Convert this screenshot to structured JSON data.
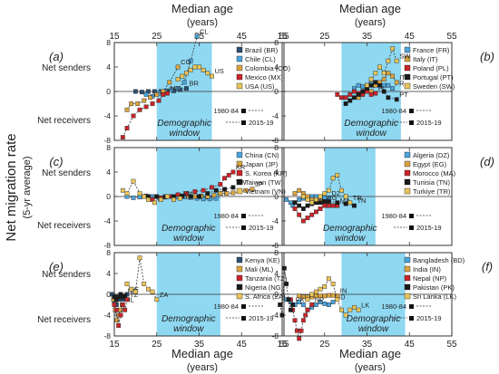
{
  "figure": {
    "ylabel_main": "Net migration rate",
    "ylabel_sub": "(5-yr average)",
    "top_xlabel": "Median age",
    "top_xlabel_sub": "(years)",
    "bottom_xlabel": "Median age",
    "bottom_xlabel_sub": "(years)",
    "net_senders": "Net senders",
    "net_receivers": "Net receivers",
    "window_label_1": "Demographic",
    "window_label_2": "window",
    "period_1": "1980-84",
    "period_2": "2015-19"
  },
  "chart_data": [
    {
      "type": "scatter",
      "panel": "(a)",
      "xlim": [
        15,
        55
      ],
      "ylim": [
        -8,
        8
      ],
      "xticks": [
        15,
        25,
        35,
        45,
        55
      ],
      "yticks": [
        -8,
        -4,
        0,
        4,
        8
      ],
      "xticklabels": [
        "15",
        "25",
        "35",
        "45",
        "55"
      ],
      "yticklabels": [
        "-8",
        "-4",
        "0",
        "4",
        "8"
      ],
      "window": [
        25,
        38
      ],
      "series": [
        {
          "name": "Brazil (BR)",
          "code": "BR",
          "color": "#2b4f73",
          "x": [
            20,
            21.5,
            23,
            24.5,
            26,
            27.5,
            29,
            30.5,
            32
          ],
          "y": [
            0,
            -0.1,
            0,
            0,
            0,
            0.1,
            0.1,
            0.3,
            0.5
          ]
        },
        {
          "name": "Chile (CL)",
          "code": "CL",
          "color": "#4ba3d9",
          "x": [
            22.5,
            24,
            25.5,
            27,
            28.5,
            30,
            31.5,
            33,
            34.5
          ],
          "y": [
            -0.5,
            -0.8,
            -0.3,
            0,
            0.3,
            0.5,
            1.5,
            5,
            9
          ]
        },
        {
          "name": "Colombia (CO)",
          "code": "CO",
          "color": "#d9a441",
          "x": [
            18,
            19,
            20.5,
            22,
            23.5,
            25,
            26.5,
            28,
            30
          ],
          "y": [
            -3,
            -2,
            -2,
            -1.5,
            -1,
            -0.5,
            0,
            1.5,
            4
          ]
        },
        {
          "name": "Mexico (MX)",
          "code": "MX",
          "color": "#c9252a",
          "x": [
            17,
            18,
            19.5,
            21,
            22.5,
            24,
            25.5,
            26.5,
            27.5
          ],
          "y": [
            -7.5,
            -6,
            -4,
            -3,
            -2.5,
            -2,
            -1.5,
            -0.5,
            -0.3
          ]
        },
        {
          "name": "USA (US)",
          "code": "US",
          "color": "#e8c45a",
          "x": [
            30,
            31,
            32,
            33,
            34,
            35,
            36,
            37,
            38
          ],
          "y": [
            2,
            2.5,
            3,
            3.5,
            4,
            4,
            3.5,
            3,
            2.5
          ]
        }
      ]
    },
    {
      "type": "scatter",
      "panel": "(b)",
      "xlim": [
        15,
        55
      ],
      "ylim": [
        -8,
        8
      ],
      "xticks": [
        15,
        25,
        35,
        45,
        55
      ],
      "yticks": [
        -8,
        -4,
        0,
        4,
        8
      ],
      "xticklabels": [
        "15",
        "25",
        "35",
        "45",
        "55"
      ],
      "yticklabels": [
        "-8",
        "-4",
        "0",
        "4",
        "8"
      ],
      "window": [
        29,
        43
      ],
      "series": [
        {
          "name": "France (FR)",
          "code": "FR",
          "color": "#4ba3d9",
          "x": [
            32,
            33,
            34,
            35,
            36,
            37,
            38,
            39,
            40,
            41
          ],
          "y": [
            0.5,
            1,
            0.8,
            1,
            1.2,
            1.5,
            1.3,
            1,
            1,
            0.5
          ]
        },
        {
          "name": "Italy (IT)",
          "code": "IT",
          "color": "#d9a441",
          "x": [
            33,
            34,
            35,
            36,
            37,
            38,
            39,
            40,
            41,
            42
          ],
          "y": [
            -1,
            0,
            0.5,
            0,
            1,
            1.5,
            2,
            3,
            2.5,
            1.5
          ]
        },
        {
          "name": "Poland (PL)",
          "code": "PL",
          "color": "#c9252a",
          "x": [
            28,
            29,
            30,
            31,
            32,
            33,
            34,
            35,
            36,
            37
          ],
          "y": [
            -0.5,
            -1,
            -1,
            -0.5,
            0,
            -0.3,
            -0.5,
            0,
            -0.5,
            -0.3
          ]
        },
        {
          "name": "Portugal (PT)",
          "code": "PT",
          "color": "#1a1a1a",
          "x": [
            30,
            31,
            32,
            33,
            34,
            35,
            36,
            37,
            38,
            39,
            40,
            42
          ],
          "y": [
            -2,
            -1.5,
            -1,
            -0.5,
            0,
            0.5,
            1,
            1.5,
            1,
            0,
            -1,
            -1.3
          ]
        },
        {
          "name": "Sweden (SW)",
          "code": "SW",
          "color": "#e8c45a",
          "x": [
            35,
            36,
            37,
            38,
            39,
            40,
            41,
            42
          ],
          "y": [
            1,
            2,
            3,
            4,
            3,
            5,
            7,
            5
          ]
        }
      ]
    },
    {
      "type": "scatter",
      "panel": "(c)",
      "xlim": [
        15,
        55
      ],
      "ylim": [
        -8,
        8
      ],
      "xticks": [
        15,
        25,
        35,
        45,
        55
      ],
      "yticks": [
        -8,
        -4,
        0,
        4,
        8
      ],
      "xticklabels": [
        "15",
        "25",
        "35",
        "45",
        "55"
      ],
      "yticklabels": [
        "-8",
        "-4",
        "0",
        "4",
        "8"
      ],
      "window": [
        25,
        40
      ],
      "series": [
        {
          "name": "China (CN)",
          "code": "CN",
          "color": "#4ba3d9",
          "x": [
            18,
            19.5,
            21,
            22.5,
            24,
            25.5,
            27,
            28.5,
            30,
            31.5,
            33,
            34.5,
            36,
            37.5,
            39
          ],
          "y": [
            0,
            -0.2,
            -0.1,
            0.1,
            0,
            -0.2,
            0,
            0,
            -0.1,
            -0.1,
            -0.2,
            -0.3,
            -0.4,
            -0.4,
            -0.3
          ]
        },
        {
          "name": "Japan (JP)",
          "code": "JP",
          "color": "#d9a441",
          "x": [
            31,
            32.5,
            34,
            35.5,
            37,
            38.5,
            40,
            41.5,
            43,
            44.5,
            46,
            47.5
          ],
          "y": [
            0.1,
            0,
            0,
            0.1,
            0,
            0.2,
            0.5,
            0.5,
            0.6,
            0.8,
            1,
            1.2
          ]
        },
        {
          "name": "S. Korea (KR)",
          "code": "KR",
          "color": "#c9252a",
          "x": [
            22,
            24,
            26,
            28,
            30,
            32,
            34,
            36,
            38,
            40,
            41,
            42,
            43
          ],
          "y": [
            0,
            -0.5,
            -0.2,
            0,
            0.3,
            0.5,
            0.8,
            1,
            1.5,
            2,
            3,
            3.5,
            4
          ]
        },
        {
          "name": "Taiwan (TW)",
          "code": "TW",
          "color": "#1a1a1a",
          "x": [
            23,
            25,
            27,
            29,
            31,
            33,
            35,
            37,
            39,
            41,
            43
          ],
          "y": [
            0,
            0,
            -0.1,
            0,
            0.1,
            0,
            0,
            0.5,
            1,
            1.2,
            1.5
          ]
        },
        {
          "name": "Vietnam (VN)",
          "code": "VN",
          "color": "#e8c45a",
          "x": [
            17,
            18,
            19.5,
            21,
            22,
            23,
            24.5,
            26,
            27.5,
            29,
            30.5
          ],
          "y": [
            1,
            0.5,
            2.5,
            0.5,
            0,
            -0.5,
            -1,
            -0.5,
            0,
            -0.5,
            -0.3
          ]
        }
      ]
    },
    {
      "type": "scatter",
      "panel": "(d)",
      "xlim": [
        15,
        55
      ],
      "ylim": [
        -8,
        8
      ],
      "xticks": [
        15,
        25,
        35,
        45,
        55
      ],
      "yticks": [
        -8,
        -4,
        0,
        4,
        8
      ],
      "xticklabels": [
        "15",
        "25",
        "35",
        "45",
        "55"
      ],
      "yticklabels": [
        "-8",
        "-4",
        "0",
        "4",
        "8"
      ],
      "window": [
        25,
        37
      ],
      "series": [
        {
          "name": "Algeria (DZ)",
          "code": "DZ",
          "color": "#4ba3d9",
          "x": [
            16,
            17,
            17.5,
            18,
            19,
            20,
            21,
            22,
            23,
            24,
            25,
            26
          ],
          "y": [
            -0.5,
            -1,
            -1.5,
            -1,
            -0.5,
            -0.3,
            -0.2,
            0,
            0,
            -0.1,
            -0.2,
            -0.3
          ]
        },
        {
          "name": "Egypt (EG)",
          "code": "EG",
          "color": "#d9a441",
          "x": [
            18,
            19,
            20,
            21,
            22,
            23,
            24,
            25
          ],
          "y": [
            0.5,
            1,
            0.5,
            0,
            -0.5,
            -0.7,
            -0.8,
            -1
          ]
        },
        {
          "name": "Morocco (MA)",
          "code": "MA",
          "color": "#c9252a",
          "x": [
            18,
            19,
            20,
            21,
            22,
            23,
            24,
            25,
            26,
            27,
            28
          ],
          "y": [
            -2,
            -3,
            -4,
            -3.5,
            -3,
            -2.5,
            -2,
            -1.5,
            -1.5,
            -1.5,
            -1.5
          ]
        },
        {
          "name": "Tunisia (TN)",
          "code": "TN",
          "color": "#1a1a1a",
          "x": [
            18,
            19,
            20,
            21,
            22,
            23,
            24,
            25,
            26,
            28,
            30,
            32
          ],
          "y": [
            -1,
            -1.5,
            -2,
            -1.5,
            -1.2,
            -1,
            -1,
            -0.8,
            -0.8,
            -1,
            -1.2,
            -1.5
          ]
        },
        {
          "name": "Turkiye (TR)",
          "code": "TR",
          "color": "#e8c45a",
          "x": [
            20,
            21,
            22,
            23,
            24,
            25,
            26,
            27,
            28,
            29,
            30,
            31
          ],
          "y": [
            0,
            -0.5,
            -1,
            -0.5,
            0,
            0.5,
            1,
            3,
            3.5,
            1,
            0,
            -1
          ]
        }
      ]
    },
    {
      "type": "scatter",
      "panel": "(e)",
      "xlim": [
        15,
        55
      ],
      "ylim": [
        -8,
        8
      ],
      "xticks": [
        15,
        25,
        35,
        45,
        55
      ],
      "yticks": [
        -8,
        -4,
        0,
        4,
        8
      ],
      "xticklabels": [
        "15",
        "25",
        "35",
        "45",
        "55"
      ],
      "yticklabels": [
        "-8",
        "-4",
        "0",
        "4",
        "8"
      ],
      "window": [
        25,
        40
      ],
      "series": [
        {
          "name": "Kenya (KE)",
          "code": "KE",
          "color": "#2b4f73",
          "x": [
            14.5,
            15,
            15.5,
            16,
            16.5,
            17,
            17.5,
            18
          ],
          "y": [
            0,
            -1.5,
            -2,
            -1,
            -0.5,
            -1,
            -0.5,
            0
          ]
        },
        {
          "name": "Mali (ML)",
          "code": "ML",
          "color": "#d9a441",
          "x": [
            14.8,
            15.2,
            15.6,
            16,
            16.4,
            16.8
          ],
          "y": [
            -1,
            -3,
            -5,
            -4,
            -3,
            -2
          ]
        },
        {
          "name": "Tanzania (TZ)",
          "code": "TZ",
          "color": "#c9252a",
          "x": [
            15,
            15.5,
            16,
            16.5,
            17,
            17.5,
            18
          ],
          "y": [
            -2,
            -3,
            -6,
            -4,
            -2,
            -3,
            -1
          ]
        },
        {
          "name": "Nigeria (NG)",
          "code": "NG",
          "color": "#1a1a1a",
          "x": [
            15,
            15.5,
            16,
            16.5,
            17,
            17.5
          ],
          "y": [
            -0.5,
            -1,
            -0.5,
            0,
            -0.5,
            -0.3
          ]
        },
        {
          "name": "S. Africa (ZA)",
          "code": "ZA",
          "color": "#e8c45a",
          "x": [
            18,
            19,
            20,
            21,
            22,
            23,
            24,
            25
          ],
          "y": [
            2,
            1,
            0.5,
            7,
            2,
            1,
            0.5,
            -1
          ]
        }
      ]
    },
    {
      "type": "scatter",
      "panel": "(f)",
      "xlim": [
        15,
        55
      ],
      "ylim": [
        -8,
        8
      ],
      "xticks": [
        15,
        25,
        35,
        45,
        55
      ],
      "yticks": [
        -8,
        -4,
        0,
        4,
        8
      ],
      "xticklabels": [
        "15",
        "25",
        "35",
        "45",
        "55"
      ],
      "yticklabels": [
        "-8",
        "-4",
        "0",
        "4",
        "8"
      ],
      "window": [
        29,
        44
      ],
      "series": [
        {
          "name": "Bangladesh (BD)",
          "code": "BD",
          "color": "#4ba3d9",
          "x": [
            16,
            17,
            18,
            19,
            20,
            21,
            22,
            23,
            24,
            25,
            26,
            27
          ],
          "y": [
            -1,
            -1.5,
            -2,
            -1.5,
            -2,
            -3,
            -2.5,
            -2,
            -1.5,
            -1.8,
            -2,
            -1.5
          ]
        },
        {
          "name": "India (IN)",
          "code": "IN",
          "color": "#d9a441",
          "x": [
            19,
            20,
            21,
            22,
            23,
            24,
            25,
            26,
            27,
            28
          ],
          "y": [
            -0.3,
            -0.5,
            -0.5,
            -0.5,
            -0.3,
            -0.3,
            -0.3,
            -0.2,
            -0.2,
            -0.3
          ]
        },
        {
          "name": "Nepal (NP)",
          "code": "NP",
          "color": "#c9252a",
          "x": [
            17,
            17.5,
            18,
            18.5,
            19,
            19.5,
            20,
            20.5,
            21,
            22
          ],
          "y": [
            -1,
            -3,
            -5,
            -7,
            -8.5,
            -7,
            -5,
            -4,
            -3,
            -2
          ]
        },
        {
          "name": "Pakistan (PK)",
          "code": "PK",
          "color": "#1a1a1a",
          "x": [
            14.5,
            15,
            15.5,
            16,
            16.5,
            17,
            17.5
          ],
          "y": [
            -2,
            -4,
            5,
            2,
            -1,
            -3,
            -2
          ]
        },
        {
          "name": "Sri Lanka (LK)",
          "code": "LK",
          "color": "#e8c45a",
          "x": [
            21,
            22,
            23,
            24,
            25,
            26,
            27,
            28,
            29,
            30,
            31,
            32,
            33
          ],
          "y": [
            -1,
            0,
            0.5,
            1,
            1.5,
            3,
            2,
            -1,
            -3,
            -4,
            -3,
            -2.5,
            -3
          ]
        }
      ]
    }
  ]
}
